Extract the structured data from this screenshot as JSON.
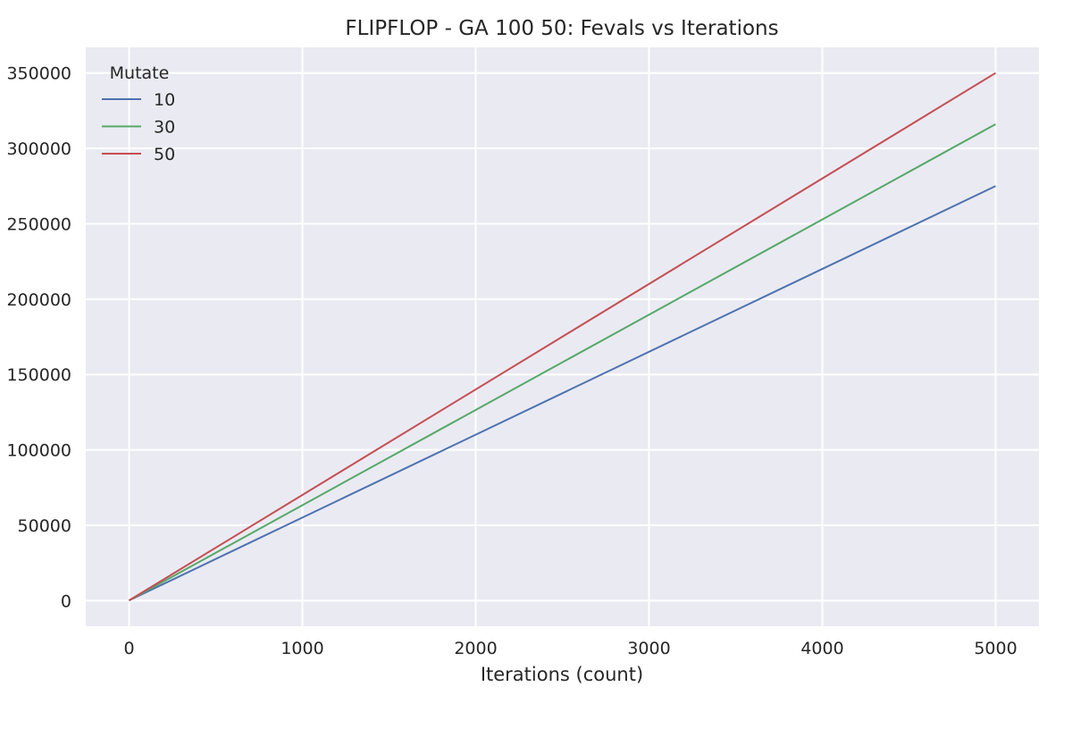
{
  "chart_data": {
    "type": "line",
    "title": "FLIPFLOP - GA 100 50: Fevals vs Iterations",
    "xlabel": "Iterations (count)",
    "ylabel": "",
    "xlim": [
      -250,
      5250
    ],
    "ylim": [
      -17000,
      367000
    ],
    "xticks": [
      0,
      1000,
      2000,
      3000,
      4000,
      5000
    ],
    "yticks": [
      0,
      50000,
      100000,
      150000,
      200000,
      250000,
      300000,
      350000
    ],
    "grid": true,
    "legend": {
      "title": "Mutate",
      "placement": "top-left"
    },
    "series": [
      {
        "name": "10",
        "color": "#4c72b0",
        "x": [
          0,
          5000
        ],
        "y": [
          100,
          275000
        ]
      },
      {
        "name": "30",
        "color": "#55a868",
        "x": [
          0,
          5000
        ],
        "y": [
          100,
          316000
        ]
      },
      {
        "name": "50",
        "color": "#c44e52",
        "x": [
          0,
          5000
        ],
        "y": [
          100,
          350000
        ]
      }
    ]
  },
  "colors": {
    "plot_background": "#eaeaf2",
    "grid": "#ffffff"
  }
}
